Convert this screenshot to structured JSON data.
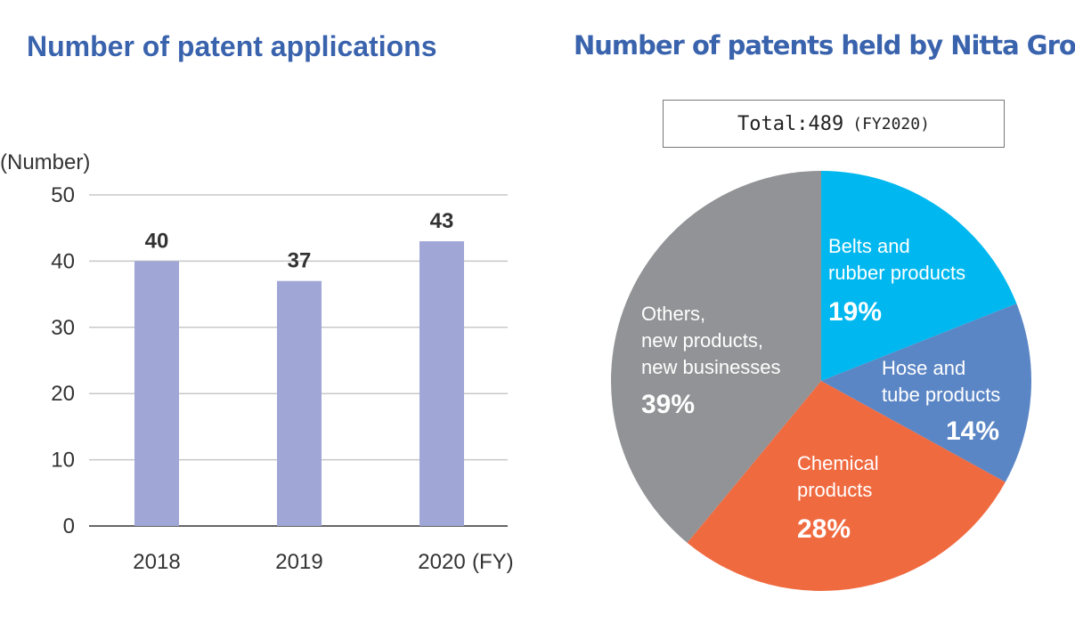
{
  "chart_data": [
    {
      "type": "bar",
      "title": "Number of patent applications",
      "ylabel": "(Number)",
      "xlabel": "(FY)",
      "categories": [
        "2018",
        "2019",
        "2020"
      ],
      "values": [
        40,
        37,
        43
      ],
      "ylim": [
        0,
        50
      ],
      "yticks": [
        0,
        10,
        20,
        30,
        40,
        50
      ],
      "grid": true,
      "bar_color": "#a0a6d6"
    },
    {
      "type": "pie",
      "title": "Number of patents held by Nitta Group",
      "total_label": "Total:489",
      "total_note": "(FY2020)",
      "slices": [
        {
          "label_lines": [
            "Belts and",
            "rubber products"
          ],
          "percent_label": "19%",
          "value": 19,
          "color": "#00b8ef"
        },
        {
          "label_lines": [
            "Hose and",
            "tube products"
          ],
          "percent_label": "14%",
          "value": 14,
          "color": "#5b86c5"
        },
        {
          "label_lines": [
            "Chemical",
            "products"
          ],
          "percent_label": "28%",
          "value": 28,
          "color": "#f06a40"
        },
        {
          "label_lines": [
            "Others,",
            "new products,",
            "new businesses"
          ],
          "percent_label": "39%",
          "value": 39,
          "color": "#929396"
        }
      ]
    }
  ]
}
